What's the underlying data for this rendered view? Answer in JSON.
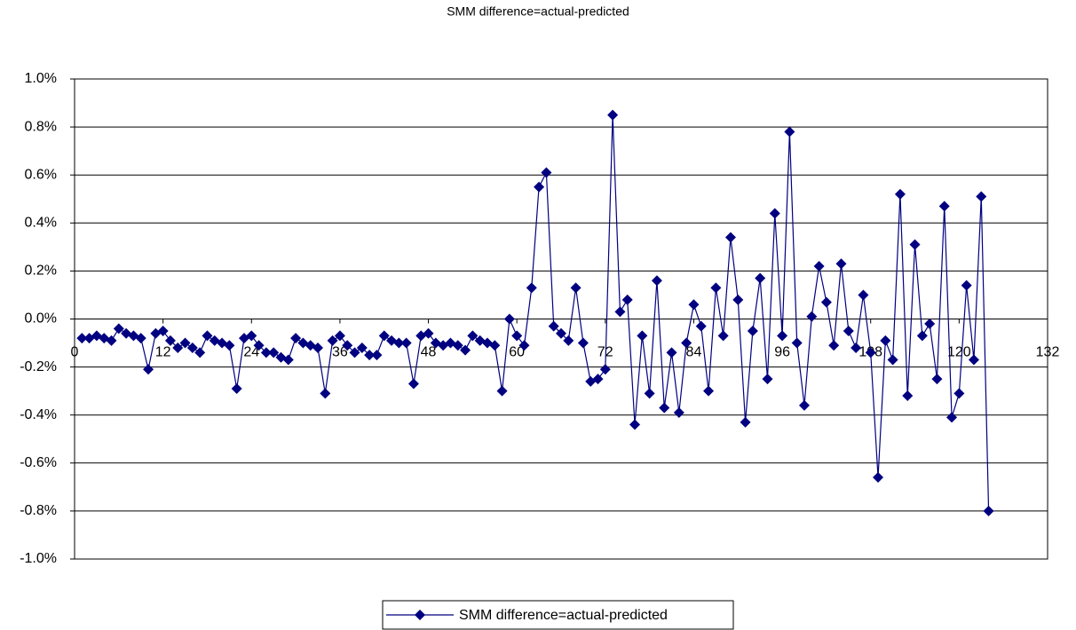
{
  "chart_data": {
    "type": "line",
    "title": "SMM difference=actual-predicted",
    "x": [
      1,
      2,
      3,
      4,
      5,
      6,
      7,
      8,
      9,
      10,
      11,
      12,
      13,
      14,
      15,
      16,
      17,
      18,
      19,
      20,
      21,
      22,
      23,
      24,
      25,
      26,
      27,
      28,
      29,
      30,
      31,
      32,
      33,
      34,
      35,
      36,
      37,
      38,
      39,
      40,
      41,
      42,
      43,
      44,
      45,
      46,
      47,
      48,
      49,
      50,
      51,
      52,
      53,
      54,
      55,
      56,
      57,
      58,
      59,
      60,
      61,
      62,
      63,
      64,
      65,
      66,
      67,
      68,
      69,
      70,
      71,
      72,
      73,
      74,
      75,
      76,
      77,
      78,
      79,
      80,
      81,
      82,
      83,
      84,
      85,
      86,
      87,
      88,
      89,
      90,
      91,
      92,
      93,
      94,
      95,
      96,
      97,
      98,
      99,
      100,
      101,
      102,
      103,
      104,
      105,
      106,
      107,
      108,
      109,
      110,
      111,
      112,
      113,
      114,
      115,
      116,
      117,
      118,
      119,
      120,
      121,
      122,
      123,
      124
    ],
    "series": [
      {
        "name": "SMM difference=actual-predicted",
        "color": "#000080",
        "values": [
          -0.08,
          -0.08,
          -0.07,
          -0.08,
          -0.09,
          -0.04,
          -0.06,
          -0.07,
          -0.08,
          -0.21,
          -0.06,
          -0.05,
          -0.09,
          -0.12,
          -0.1,
          -0.12,
          -0.14,
          -0.07,
          -0.09,
          -0.1,
          -0.11,
          -0.29,
          -0.08,
          -0.07,
          -0.11,
          -0.14,
          -0.14,
          -0.16,
          -0.17,
          -0.08,
          -0.1,
          -0.11,
          -0.12,
          -0.31,
          -0.09,
          -0.07,
          -0.11,
          -0.14,
          -0.12,
          -0.15,
          -0.15,
          -0.07,
          -0.09,
          -0.1,
          -0.1,
          -0.27,
          -0.07,
          -0.06,
          -0.1,
          -0.11,
          -0.1,
          -0.11,
          -0.13,
          -0.07,
          -0.09,
          -0.1,
          -0.11,
          -0.3,
          0.0,
          -0.07,
          -0.11,
          0.13,
          0.55,
          0.61,
          -0.03,
          -0.06,
          -0.09,
          0.13,
          -0.1,
          -0.26,
          -0.25,
          -0.21,
          0.85,
          0.03,
          0.08,
          -0.44,
          -0.07,
          -0.31,
          0.16,
          -0.37,
          -0.14,
          -0.39,
          -0.1,
          0.06,
          -0.03,
          -0.3,
          0.13,
          -0.07,
          0.34,
          0.08,
          -0.43,
          -0.05,
          0.17,
          -0.25,
          0.44,
          -0.07,
          0.78,
          -0.1,
          -0.36,
          0.01,
          0.22,
          0.07,
          -0.11,
          0.23,
          -0.05,
          -0.12,
          0.1,
          -0.14,
          -0.66,
          -0.09,
          -0.17,
          0.52,
          -0.32,
          0.31,
          -0.07,
          -0.02,
          -0.25,
          0.47,
          -0.41,
          -0.31,
          0.14,
          -0.17,
          0.51,
          -0.8
        ]
      }
    ],
    "xlim": [
      0,
      132
    ],
    "xticks": [
      0,
      12,
      24,
      36,
      48,
      60,
      72,
      84,
      96,
      108,
      120,
      132
    ],
    "ylim": [
      -1,
      1
    ],
    "yticks": [
      {
        "value": -1,
        "label": "-1.0%"
      },
      {
        "value": -0.8,
        "label": "-0.8%"
      },
      {
        "value": -0.6,
        "label": "-0.6%"
      },
      {
        "value": -0.4,
        "label": "-0.4%"
      },
      {
        "value": -0.2,
        "label": "-0.2%"
      },
      {
        "value": 0,
        "label": "0.0%"
      },
      {
        "value": 0.2,
        "label": "0.2%"
      },
      {
        "value": 0.4,
        "label": "0.4%"
      },
      {
        "value": 0.6,
        "label": "0.6%"
      },
      {
        "value": 0.8,
        "label": "0.8%"
      },
      {
        "value": 1,
        "label": "1.0%"
      }
    ],
    "grid": true,
    "legend": "bottom"
  }
}
